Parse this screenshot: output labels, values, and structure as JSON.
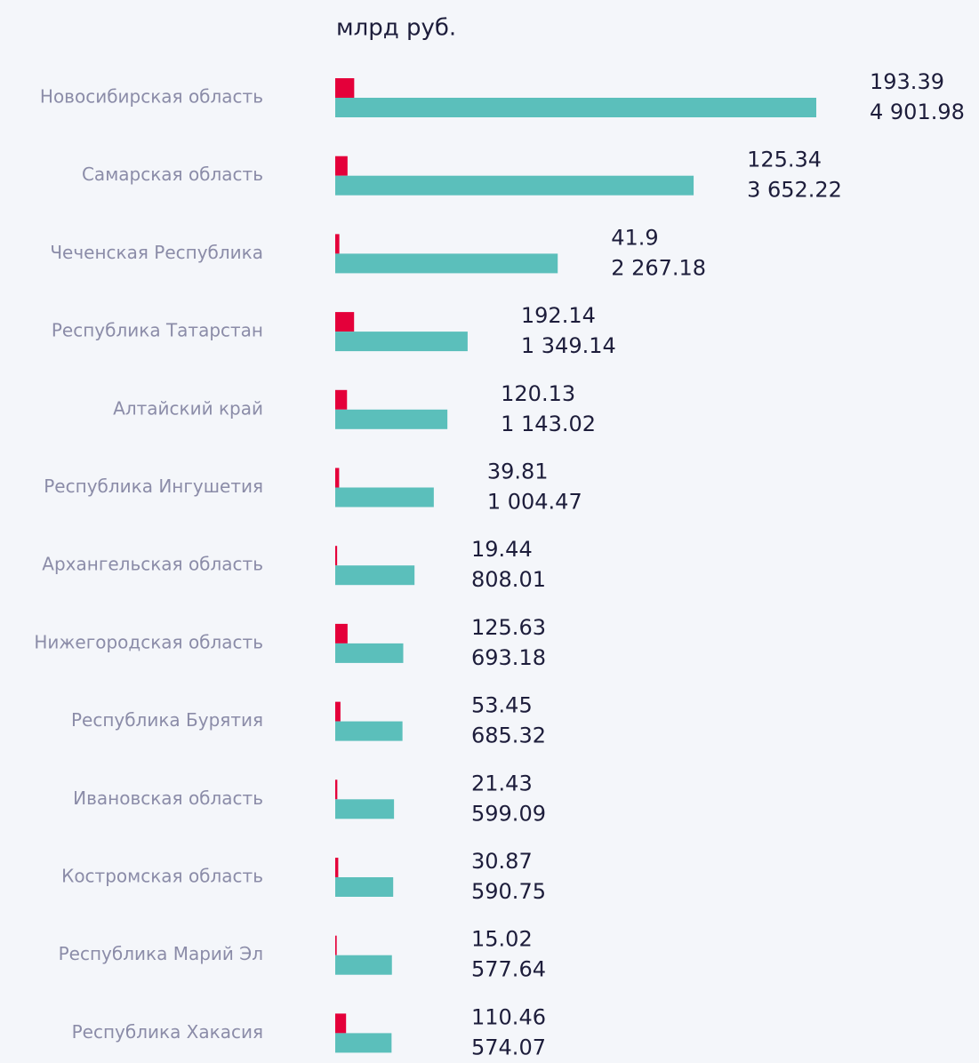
{
  "chart_data": {
    "type": "bar",
    "orientation": "horizontal",
    "title": "млрд руб.",
    "categories": [
      "Новосибирская область",
      "Самарская область",
      "Чеченская Республика",
      "Республика Татарстан",
      "Алтайский край",
      "Республика Ингушетия",
      "Архангельская область",
      "Нижегородская область",
      "Республика Бурятия",
      "Ивановская область",
      "Костромская область",
      "Республика Марий Эл",
      "Республика Хакасия"
    ],
    "series": [
      {
        "color": "#e4003a",
        "values": [
          193.39,
          125.34,
          41.9,
          192.14,
          120.13,
          39.81,
          19.44,
          125.63,
          53.45,
          21.43,
          30.87,
          15.02,
          110.46
        ]
      },
      {
        "color": "#5bbfbb",
        "values": [
          4901.98,
          3652.22,
          2267.18,
          1349.14,
          1143.02,
          1004.47,
          808.01,
          693.18,
          685.32,
          599.09,
          590.75,
          577.64,
          574.07
        ],
        "value_labels": [
          "4 901.98",
          "3 652.22",
          "2 267.18",
          "1 349.14",
          "1 143.02",
          "1 004.47",
          "808.01",
          "693.18",
          "685.32",
          "599.09",
          "590.75",
          "577.64",
          "574.07"
        ]
      }
    ]
  }
}
